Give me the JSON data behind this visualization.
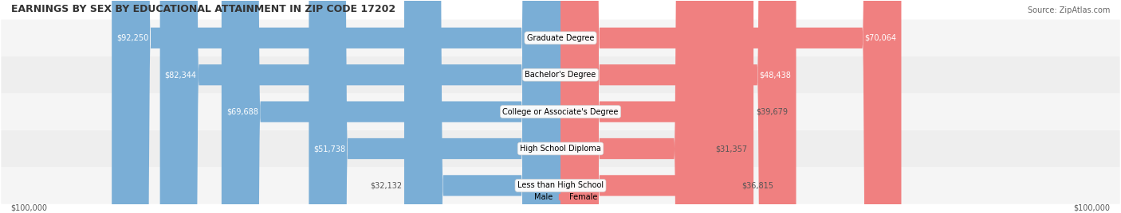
{
  "title": "EARNINGS BY SEX BY EDUCATIONAL ATTAINMENT IN ZIP CODE 17202",
  "source": "Source: ZipAtlas.com",
  "categories": [
    "Less than High School",
    "High School Diploma",
    "College or Associate's Degree",
    "Bachelor's Degree",
    "Graduate Degree"
  ],
  "male_values": [
    32132,
    51738,
    69688,
    82344,
    92250
  ],
  "female_values": [
    36815,
    31357,
    39679,
    48438,
    70064
  ],
  "max_val": 100000,
  "male_color": "#7aaed6",
  "female_color": "#f08080",
  "bar_bg_color": "#e8e8e8",
  "row_bg_colors": [
    "#f5f5f5",
    "#eeeeee"
  ],
  "title_fontsize": 9,
  "source_fontsize": 7,
  "label_fontsize": 7,
  "value_fontsize": 7,
  "legend_fontsize": 7,
  "axis_label_left": "$100,000",
  "axis_label_right": "$100,000"
}
